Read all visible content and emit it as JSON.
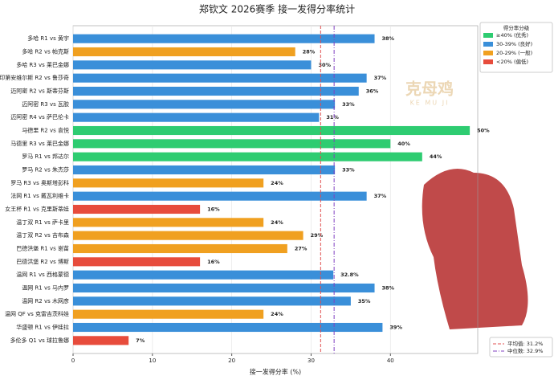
{
  "chart_data": {
    "type": "barh",
    "title": "郑钦文 2026赛季 接一发得分率统计",
    "x_label": "接一发得分率 (%)",
    "categories": [
      "多哈 R1 vs 黄宇",
      "多哈 R2 vs 帕克斯",
      "多哈 R3 vs 莱巴金娜",
      "印第安维尔斯 R2 vs 鲁莎奇",
      "迈阿密 R2 vs 斯蒂芬斯",
      "迈阿密 R3 vs 瓦胶",
      "迈阿密 R4 vs 萨巴伦卡",
      "马德里 R2 vs 袁悦",
      "马德里 R3 vs 莱巴金娜",
      "罗马 R1 vs 邦达尔",
      "罗马 R2 vs 朱杰莎",
      "罗马 R3 vs 奥斯塔彭科",
      "法网 R1 vs 戴瓦利维卡",
      "女王杯 R1 vs 克里斯蒂娃",
      "温丁双 R1 vs 萨卡里",
      "温丁双 R2 vs 吉布森",
      "巴德洪堡 R1 vs 谢苗",
      "巴德洪堡 R2 vs 博斯",
      "温网 R1 vs 西格蒙德",
      "温网 R1 vs 马内罗",
      "温网 R2 vs 木网彦",
      "温网 QF vs 克雷吉茨科娃",
      "华盛顿 R1 vs 伊娃拉",
      "多伦多 Q1 vs 球拉鲁娜"
    ],
    "values": [
      38,
      28,
      30,
      37,
      36,
      33,
      31,
      50,
      40,
      44,
      33,
      24,
      37,
      16,
      24,
      29,
      27,
      16,
      32.8,
      38,
      35,
      24,
      39,
      7
    ],
    "value_labels": [
      "38%",
      "28%",
      "30%",
      "37%",
      "36%",
      "33%",
      "31%",
      "50%",
      "40%",
      "44%",
      "33%",
      "24%",
      "37%",
      "16%",
      "24%",
      "29%",
      "27%",
      "16%",
      "32.8%",
      "38%",
      "35%",
      "24%",
      "39%",
      "7%"
    ],
    "colors": [
      "#3a8fd9",
      "#f0a020",
      "#3a8fd9",
      "#3a8fd9",
      "#3a8fd9",
      "#3a8fd9",
      "#3a8fd9",
      "#2ecc71",
      "#2ecc71",
      "#2ecc71",
      "#3a8fd9",
      "#f0a020",
      "#3a8fd9",
      "#e74c3c",
      "#f0a020",
      "#f0a020",
      "#f0a020",
      "#e74c3c",
      "#3a8fd9",
      "#3a8fd9",
      "#3a8fd9",
      "#f0a020",
      "#3a8fd9",
      "#e74c3c"
    ],
    "xlim": [
      0,
      51
    ],
    "xticks": [
      0,
      10,
      20,
      30,
      40
    ],
    "grid": true,
    "legend": {
      "title": "得分率分级",
      "items": [
        {
          "label": "≥40% (优秀)",
          "color": "#2ecc71"
        },
        {
          "label": "30-39% (良好)",
          "color": "#3a8fd9"
        },
        {
          "label": "20-29% (一般)",
          "color": "#f0a020"
        },
        {
          "label": "<20% (偏低)",
          "color": "#e74c3c"
        }
      ]
    },
    "reference_lines": [
      {
        "label": "平均值: 31.2%",
        "value": 31.2,
        "color": "#e05050",
        "style": "dashed"
      },
      {
        "label": "中位数: 32.9%",
        "value": 32.9,
        "color": "#8040c0",
        "style": "dashdot"
      }
    ],
    "watermark": {
      "text": "克母鸡",
      "subtext": "KE MU JI"
    }
  }
}
